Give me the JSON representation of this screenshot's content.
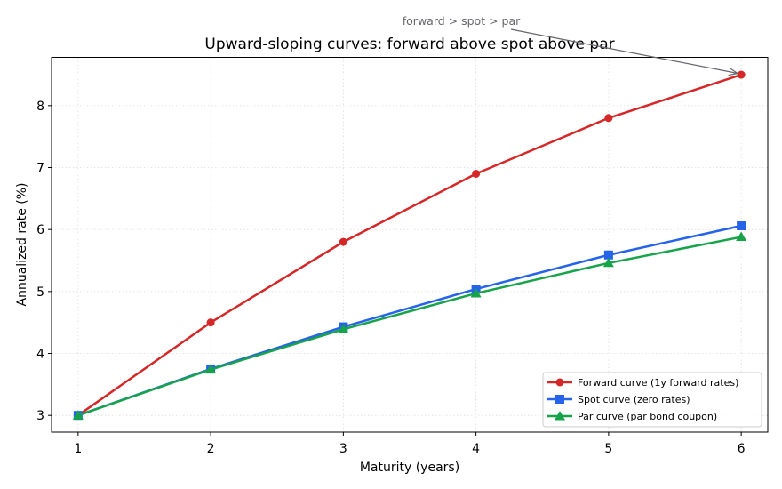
{
  "chart_data": {
    "type": "line",
    "title": "Upward-sloping curves: forward above spot above par",
    "xlabel": "Maturity (years)",
    "ylabel": "Annualized rate (%)",
    "x": [
      1,
      2,
      3,
      4,
      5,
      6
    ],
    "xticks": [
      "1",
      "2",
      "3",
      "4",
      "5",
      "6"
    ],
    "yticks": [
      "3",
      "4",
      "5",
      "6",
      "7",
      "8"
    ],
    "xlim": [
      0.8,
      6.2
    ],
    "ylim": [
      2.73,
      8.78
    ],
    "grid": true,
    "legend_position": "bottom-right",
    "series": [
      {
        "name": "Forward curve (1y forward rates)",
        "color": "#d62728",
        "marker": "circle",
        "values": [
          3.0,
          4.5,
          5.8,
          6.9,
          7.8,
          8.5
        ]
      },
      {
        "name": "Spot curve (zero rates)",
        "color": "#2563eb",
        "marker": "square",
        "values": [
          3.0,
          3.75,
          4.43,
          5.04,
          5.59,
          6.06
        ]
      },
      {
        "name": "Par curve (par bond coupon)",
        "color": "#16a34a",
        "marker": "triangle",
        "values": [
          3.0,
          3.74,
          4.39,
          4.97,
          5.46,
          5.88
        ]
      }
    ],
    "annotations": [
      {
        "text": "forward > spot > par",
        "x": 6,
        "y": 8.5
      }
    ]
  }
}
